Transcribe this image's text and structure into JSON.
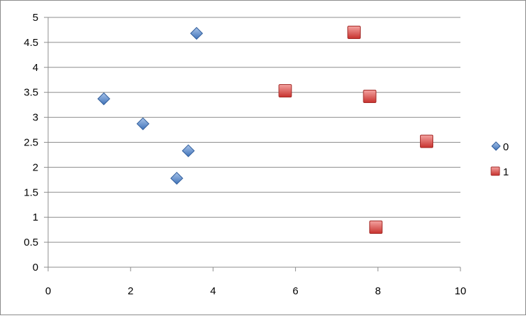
{
  "chart_data": {
    "type": "scatter",
    "title": "",
    "xlabel": "",
    "ylabel": "",
    "xlim": [
      0,
      10
    ],
    "ylim": [
      0,
      5
    ],
    "x_ticks": [
      0,
      2,
      4,
      6,
      8,
      10
    ],
    "y_ticks": [
      0,
      0.5,
      1,
      1.5,
      2,
      2.5,
      3,
      3.5,
      4,
      4.5,
      5
    ],
    "grid": "horizontal",
    "legend_position": "right",
    "series": [
      {
        "name": "0",
        "marker": "diamond",
        "color": "#4f81bd",
        "points": [
          {
            "x": 1.35,
            "y": 3.37
          },
          {
            "x": 2.3,
            "y": 2.87
          },
          {
            "x": 3.4,
            "y": 2.33
          },
          {
            "x": 3.12,
            "y": 1.78
          },
          {
            "x": 3.6,
            "y": 4.68
          }
        ]
      },
      {
        "name": "1",
        "marker": "square",
        "color": "#c0504d",
        "points": [
          {
            "x": 5.75,
            "y": 3.53
          },
          {
            "x": 7.42,
            "y": 4.7
          },
          {
            "x": 7.8,
            "y": 3.42
          },
          {
            "x": 9.18,
            "y": 2.52
          },
          {
            "x": 7.95,
            "y": 0.8
          }
        ]
      }
    ]
  }
}
